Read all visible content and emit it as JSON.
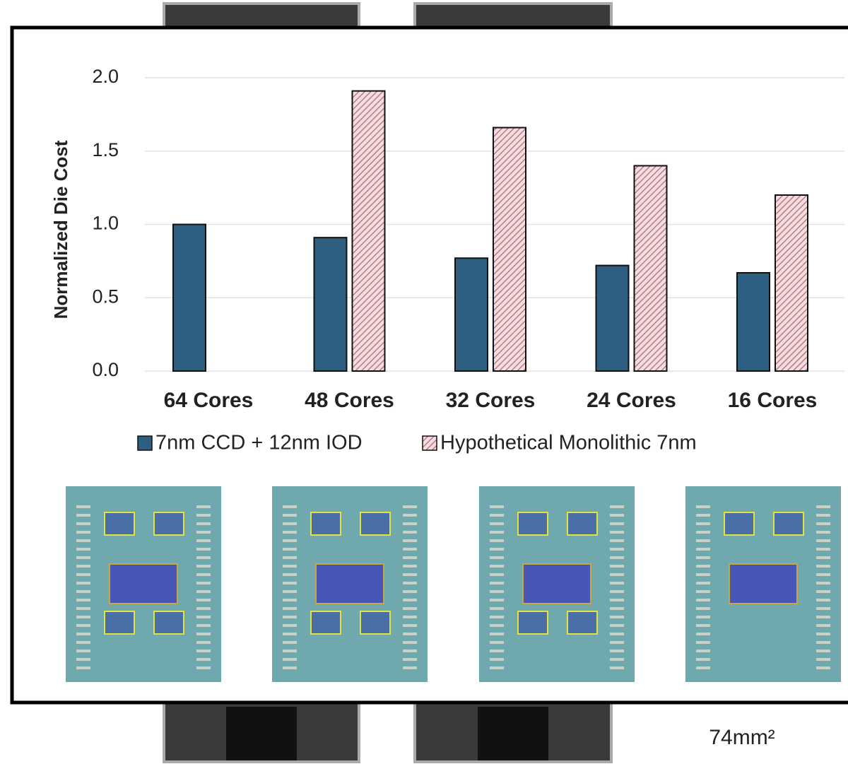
{
  "chart_data": {
    "type": "bar",
    "y_label": "Normalized Die Cost",
    "categories": [
      "64 Cores",
      "48 Cores",
      "32 Cores",
      "24 Cores",
      "16 Cores"
    ],
    "series": [
      {
        "name": "7nm CCD + 12nm IOD",
        "color": "#2f5f80",
        "values": [
          1.0,
          0.91,
          0.77,
          0.72,
          0.67
        ]
      },
      {
        "name": "Hypothetical Monolithic 7nm",
        "color": "#e4aeb3",
        "values": [
          null,
          1.91,
          1.66,
          1.4,
          1.2
        ]
      }
    ],
    "ylim": [
      0,
      2
    ],
    "yticks": [
      {
        "value": 0,
        "label": "0.0"
      },
      {
        "value": 0.5,
        "label": "0.5"
      },
      {
        "value": 1,
        "label": "1.0"
      },
      {
        "value": 1.5,
        "label": "1.5"
      },
      {
        "value": 2,
        "label": "2.0"
      }
    ],
    "grid": true,
    "footnote": "74mm²"
  }
}
